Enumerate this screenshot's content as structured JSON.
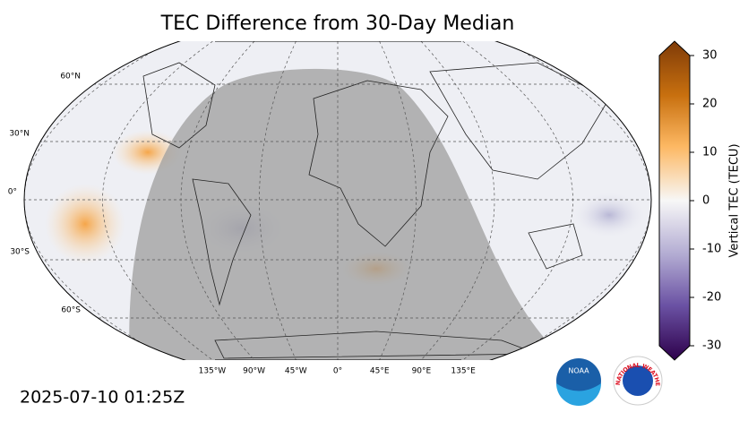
{
  "title": "TEC Difference from 30-Day Median",
  "timestamp": "2025-07-10 01:25Z",
  "map": {
    "lat_labels": [
      "60°N",
      "30°N",
      "0°",
      "30°S",
      "60°S"
    ],
    "lon_labels": [
      "135°W",
      "90°W",
      "45°W",
      "0°",
      "45°E",
      "90°E",
      "135°E"
    ]
  },
  "colorbar": {
    "label": "Vertical TEC (TECU)",
    "lim": [
      -30,
      30
    ],
    "ticks": [
      30,
      20,
      10,
      0,
      -10,
      -20,
      -30
    ]
  },
  "logos": {
    "noaa": "NOAA",
    "nws": "NATIONAL WEATHER SERVICE"
  }
}
